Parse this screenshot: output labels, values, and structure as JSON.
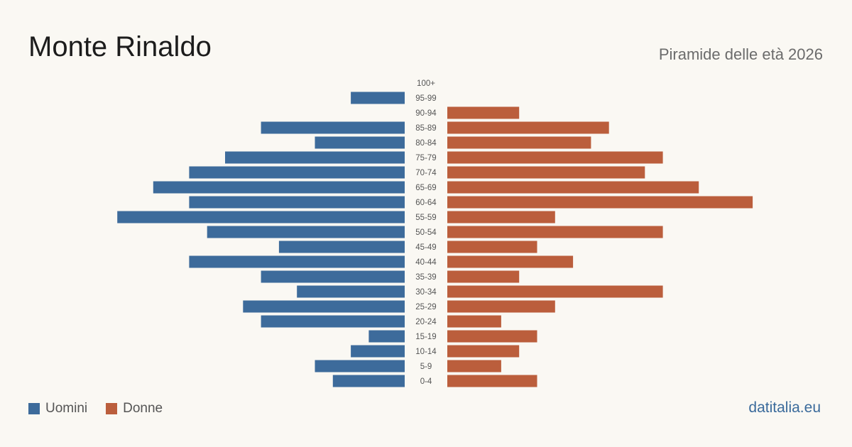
{
  "header": {
    "title": "Monte Rinaldo",
    "subtitle": "Piramide delle età 2026"
  },
  "legend": {
    "men_label": "Uomini",
    "women_label": "Donne"
  },
  "footer": {
    "brand": "datitalia.eu"
  },
  "colors": {
    "men": "#3d6b9b",
    "women": "#bb5e3c"
  },
  "chart_data": {
    "type": "bar",
    "orientation": "horizontal-pyramid",
    "categories": [
      "100+",
      "95-99",
      "90-94",
      "85-89",
      "80-84",
      "75-79",
      "70-74",
      "65-69",
      "60-64",
      "55-59",
      "50-54",
      "45-49",
      "40-44",
      "35-39",
      "30-34",
      "25-29",
      "20-24",
      "15-19",
      "10-14",
      "5-9",
      "0-4"
    ],
    "series": [
      {
        "name": "Uomini",
        "values": [
          0,
          3,
          0,
          8,
          5,
          10,
          12,
          14,
          12,
          16,
          11,
          7,
          12,
          8,
          6,
          9,
          8,
          2,
          3,
          5,
          4
        ]
      },
      {
        "name": "Donne",
        "values": [
          0,
          0,
          4,
          9,
          8,
          12,
          11,
          14,
          17,
          6,
          12,
          5,
          7,
          4,
          12,
          6,
          3,
          5,
          4,
          3,
          5
        ]
      }
    ],
    "legend": "bottom-left",
    "grid": false
  }
}
